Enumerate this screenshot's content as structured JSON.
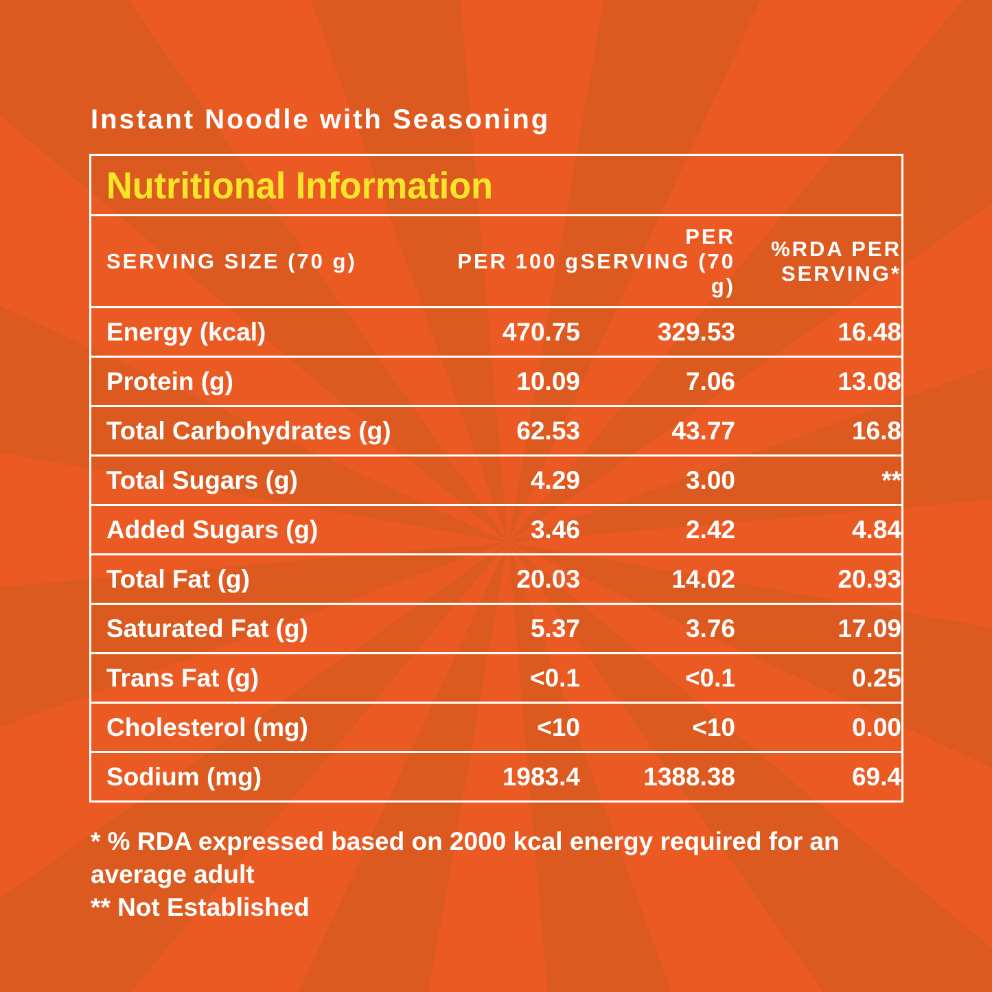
{
  "product_name": "Instant Noodle with Seasoning",
  "panel_title": "Nutritional Information",
  "colors": {
    "background": "#e35a1e",
    "title": "#f7e52a",
    "text": "#ffffff"
  },
  "headers": [
    "SERVING SIZE (70 g)",
    "PER 100 g",
    "PER SERVING (70 g)",
    "%RDA PER SERVING*"
  ],
  "rows": [
    [
      "Energy (kcal)",
      "470.75",
      "329.53",
      "16.48"
    ],
    [
      "Protein (g)",
      "10.09",
      "7.06",
      "13.08"
    ],
    [
      "Total Carbohydrates (g)",
      "62.53",
      "43.77",
      "16.8"
    ],
    [
      "Total Sugars (g)",
      "4.29",
      "3.00",
      "**"
    ],
    [
      "Added Sugars (g)",
      "3.46",
      "2.42",
      "4.84"
    ],
    [
      "Total Fat (g)",
      "20.03",
      "14.02",
      "20.93"
    ],
    [
      "Saturated Fat (g)",
      "5.37",
      "3.76",
      "17.09"
    ],
    [
      "Trans Fat (g)",
      "<0.1",
      "<0.1",
      "0.25"
    ],
    [
      "Cholesterol (mg)",
      "<10",
      "<10",
      "0.00"
    ],
    [
      "Sodium (mg)",
      "1983.4",
      "1388.38",
      "69.4"
    ]
  ],
  "footnotes": [
    "* % RDA expressed based on 2000 kcal energy required for an average adult",
    "** Not Established"
  ]
}
